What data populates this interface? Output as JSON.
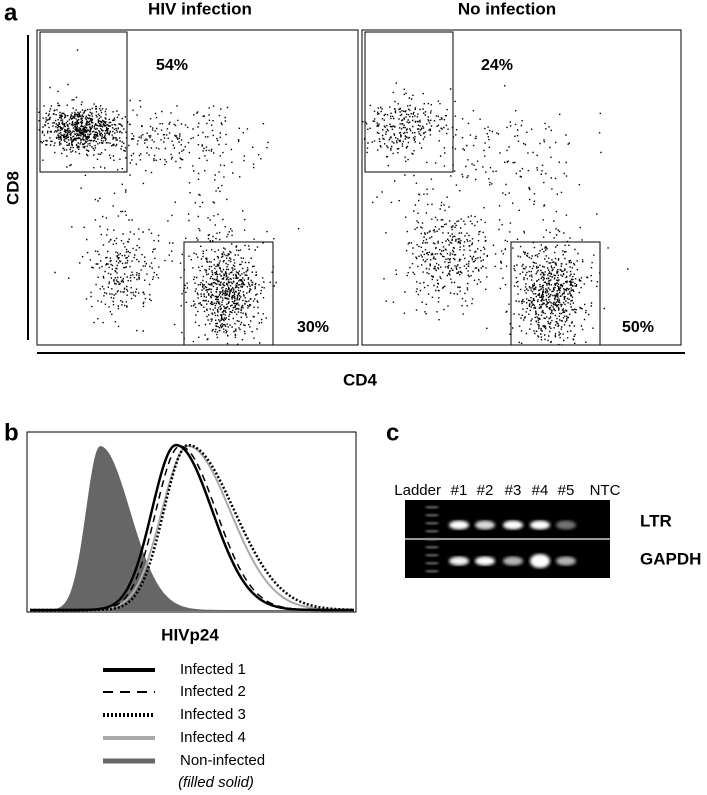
{
  "panel_a": {
    "label": "a",
    "y_label": "CD8",
    "x_label": "CD4",
    "plots": [
      {
        "title": "HIV infection",
        "gates": [
          {
            "percent": "54%"
          },
          {
            "percent": "30%"
          }
        ]
      },
      {
        "title": "No infection",
        "gates": [
          {
            "percent": "24%"
          },
          {
            "percent": "50%"
          }
        ]
      }
    ]
  },
  "panel_b": {
    "label": "b",
    "x_label": "HIVp24",
    "legend": [
      {
        "name": "Infected 1"
      },
      {
        "name": "Infected 2"
      },
      {
        "name": "Infected 3"
      },
      {
        "name": "Infected 4"
      },
      {
        "name": "Non-infected",
        "note": "(filled solid)"
      }
    ]
  },
  "panel_c": {
    "label": "c",
    "lanes": [
      "Ladder",
      "#1",
      "#2",
      "#3",
      "#4",
      "#5",
      "NTC"
    ],
    "bands": [
      "LTR",
      "GAPDH"
    ]
  }
}
